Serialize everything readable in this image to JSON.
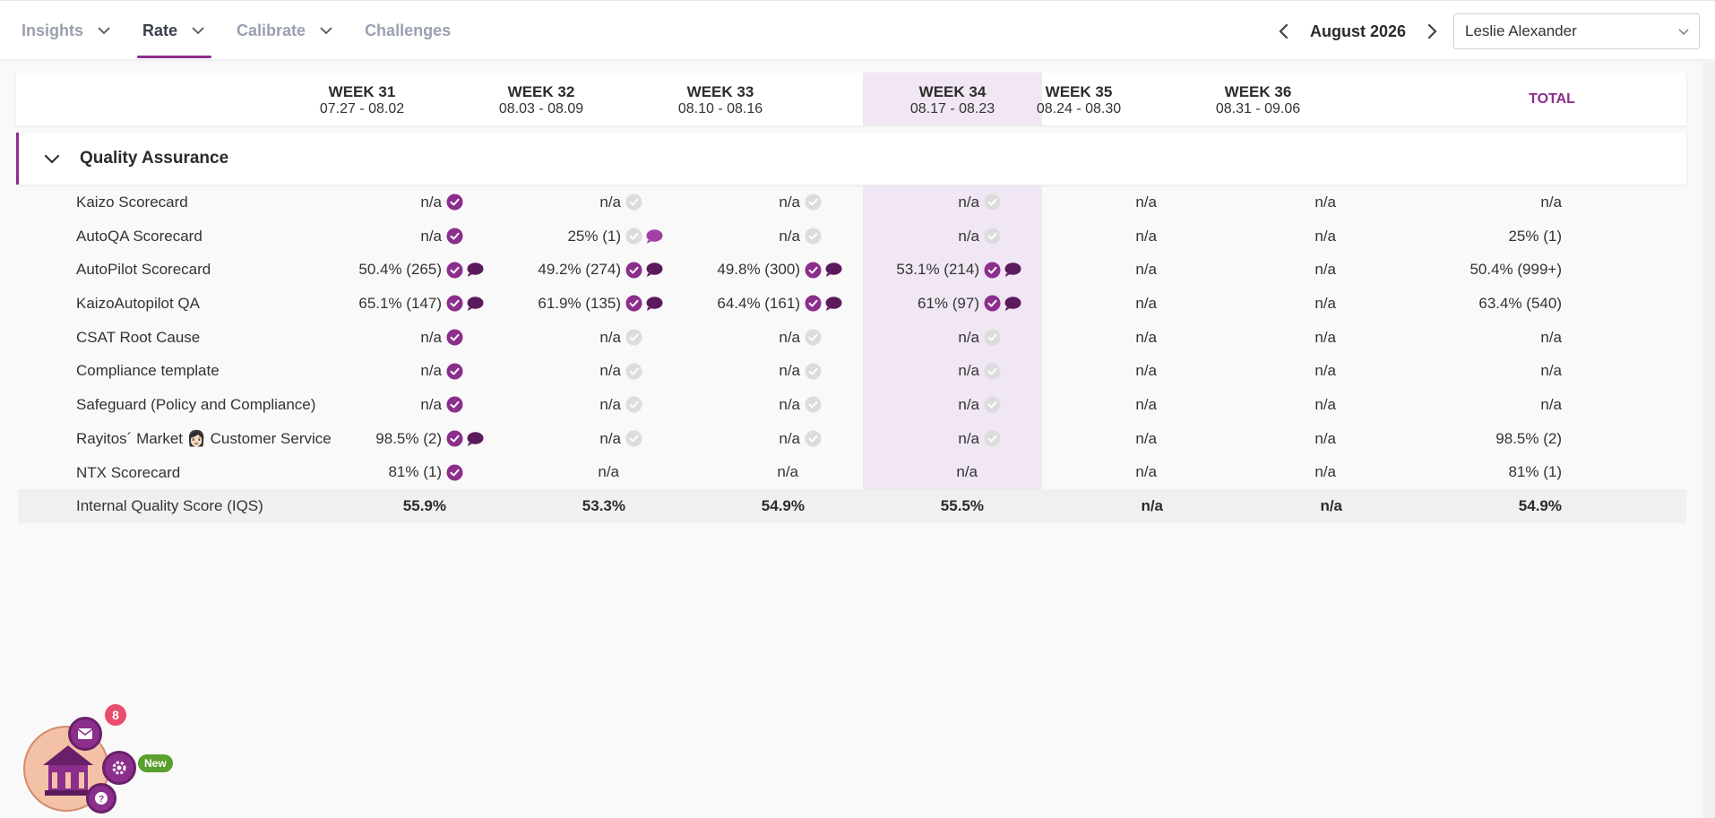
{
  "nav": {
    "tabs": [
      {
        "label": "Insights",
        "active": false,
        "has_dropdown": true
      },
      {
        "label": "Rate",
        "active": true,
        "has_dropdown": true
      },
      {
        "label": "Calibrate",
        "active": false,
        "has_dropdown": true
      },
      {
        "label": "Challenges",
        "active": false,
        "has_dropdown": false
      }
    ],
    "month": "August 2026",
    "user": "Leslie Alexander"
  },
  "weeks": [
    {
      "week": "WEEK 31",
      "dates": "07.27 - 08.02"
    },
    {
      "week": "WEEK 32",
      "dates": "08.03 - 08.09"
    },
    {
      "week": "WEEK 33",
      "dates": "08.10 - 08.16"
    },
    {
      "week": "WEEK 34",
      "dates": "08.17 - 08.23",
      "highlighted": true
    },
    {
      "week": "WEEK 35",
      "dates": "08.24 - 08.30"
    },
    {
      "week": "WEEK 36",
      "dates": "08.31 - 09.06"
    }
  ],
  "total_label": "TOTAL",
  "section": {
    "title": "Quality Assurance"
  },
  "rows": [
    {
      "label": "Kaizo Scorecard",
      "cells": [
        {
          "v": "n/a",
          "check": "done"
        },
        {
          "v": "n/a",
          "check": "pending"
        },
        {
          "v": "n/a",
          "check": "pending"
        },
        {
          "v": "n/a",
          "check": "pending"
        },
        {
          "v": "n/a"
        },
        {
          "v": "n/a"
        }
      ],
      "total": "n/a"
    },
    {
      "label": "AutoQA Scorecard",
      "cells": [
        {
          "v": "n/a",
          "check": "done"
        },
        {
          "v": "25% (1)",
          "check": "pending",
          "comment": "light"
        },
        {
          "v": "n/a",
          "check": "pending"
        },
        {
          "v": "n/a",
          "check": "pending"
        },
        {
          "v": "n/a"
        },
        {
          "v": "n/a"
        }
      ],
      "total": "25% (1)"
    },
    {
      "label": "AutoPilot Scorecard",
      "cells": [
        {
          "v": "50.4% (265)",
          "check": "done",
          "comment": "dark"
        },
        {
          "v": "49.2% (274)",
          "check": "done",
          "comment": "dark"
        },
        {
          "v": "49.8% (300)",
          "check": "done",
          "comment": "dark"
        },
        {
          "v": "53.1% (214)",
          "check": "done",
          "comment": "dark"
        },
        {
          "v": "n/a"
        },
        {
          "v": "n/a"
        }
      ],
      "total": "50.4% (999+)"
    },
    {
      "label": "KaizoAutopilot QA",
      "cells": [
        {
          "v": "65.1% (147)",
          "check": "done",
          "comment": "dark"
        },
        {
          "v": "61.9% (135)",
          "check": "done",
          "comment": "dark"
        },
        {
          "v": "64.4% (161)",
          "check": "done",
          "comment": "dark"
        },
        {
          "v": "61% (97)",
          "check": "done",
          "comment": "dark"
        },
        {
          "v": "n/a"
        },
        {
          "v": "n/a"
        }
      ],
      "total": "63.4% (540)"
    },
    {
      "label": "CSAT Root Cause",
      "cells": [
        {
          "v": "n/a",
          "check": "done"
        },
        {
          "v": "n/a",
          "check": "pending"
        },
        {
          "v": "n/a",
          "check": "pending"
        },
        {
          "v": "n/a",
          "check": "pending"
        },
        {
          "v": "n/a"
        },
        {
          "v": "n/a"
        }
      ],
      "total": "n/a"
    },
    {
      "label": "Compliance template",
      "cells": [
        {
          "v": "n/a",
          "check": "done"
        },
        {
          "v": "n/a",
          "check": "pending"
        },
        {
          "v": "n/a",
          "check": "pending"
        },
        {
          "v": "n/a",
          "check": "pending"
        },
        {
          "v": "n/a"
        },
        {
          "v": "n/a"
        }
      ],
      "total": "n/a"
    },
    {
      "label": "Safeguard (Policy and Compliance)",
      "cells": [
        {
          "v": "n/a",
          "check": "done"
        },
        {
          "v": "n/a",
          "check": "pending"
        },
        {
          "v": "n/a",
          "check": "pending"
        },
        {
          "v": "n/a",
          "check": "pending"
        },
        {
          "v": "n/a"
        },
        {
          "v": "n/a"
        }
      ],
      "total": "n/a"
    },
    {
      "label": "Rayitos´ Market 👩🏻 Customer Service",
      "cells": [
        {
          "v": "98.5% (2)",
          "check": "done",
          "comment": "dark"
        },
        {
          "v": "n/a",
          "check": "pending"
        },
        {
          "v": "n/a",
          "check": "pending"
        },
        {
          "v": "n/a",
          "check": "pending"
        },
        {
          "v": "n/a"
        },
        {
          "v": "n/a"
        }
      ],
      "total": "98.5% (2)"
    },
    {
      "label": "NTX Scorecard",
      "cells": [
        {
          "v": "81% (1)",
          "check": "done"
        },
        {
          "v": "n/a"
        },
        {
          "v": "n/a"
        },
        {
          "v": "n/a"
        },
        {
          "v": "n/a"
        },
        {
          "v": "n/a"
        }
      ],
      "total": "81% (1)"
    }
  ],
  "iqs": {
    "label": "Internal Quality Score (IQS)",
    "cells": [
      "55.9%",
      "53.3%",
      "54.9%",
      "55.5%",
      "n/a",
      "n/a"
    ],
    "total": "54.9%"
  },
  "widget": {
    "notification_count": "8",
    "new_label": "New"
  },
  "colors": {
    "accent": "#8c2e8c",
    "highlight": "#f1e6f3",
    "comment_dark": "#5b1a5b",
    "comment_light": "#a340a3",
    "pending": "#dcdcdc"
  }
}
